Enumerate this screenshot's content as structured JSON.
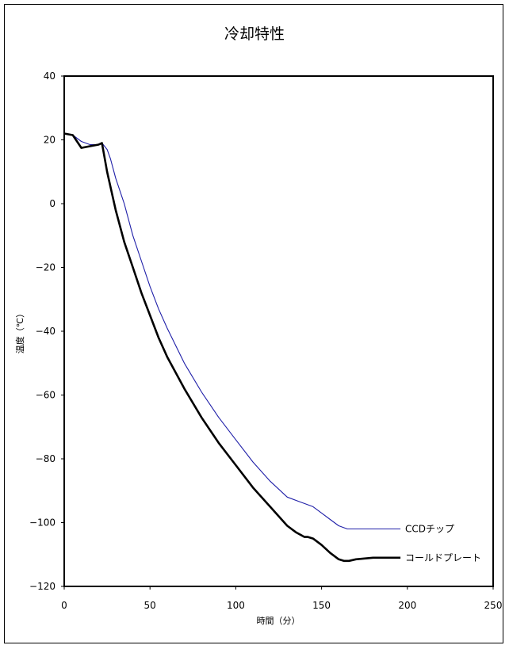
{
  "chart_data": {
    "type": "line",
    "title": "冷却特性",
    "xlabel": "時間（分）",
    "ylabel": "温度（℃）",
    "xlim": [
      0,
      250
    ],
    "ylim": [
      -120,
      40
    ],
    "xticks": [
      0,
      50,
      100,
      150,
      200,
      250
    ],
    "yticks": [
      40,
      20,
      0,
      -20,
      -40,
      -60,
      -80,
      -100,
      -120
    ],
    "grid": false,
    "legend": "series labels at line ends",
    "series": [
      {
        "name": "CCDチップ",
        "color": "#1f1fa8",
        "line_style": "thin",
        "x": [
          0,
          5,
          10,
          15,
          20,
          22,
          25,
          27,
          30,
          35,
          40,
          45,
          50,
          55,
          60,
          70,
          80,
          90,
          100,
          110,
          120,
          130,
          140,
          145,
          150,
          155,
          160,
          165,
          170,
          180,
          190,
          196
        ],
        "y": [
          22,
          21.5,
          19.5,
          18.5,
          18.5,
          19,
          17,
          14,
          8,
          0,
          -10,
          -18,
          -26,
          -33,
          -39,
          -50,
          -59,
          -67,
          -74,
          -81,
          -87,
          -92,
          -94,
          -95,
          -97,
          -99,
          -101,
          -102,
          -102,
          -102,
          -102,
          -102
        ]
      },
      {
        "name": "コールドプレート",
        "color": "#000000",
        "line_style": "thick",
        "x": [
          0,
          5,
          10,
          15,
          20,
          22,
          25,
          30,
          35,
          40,
          45,
          50,
          55,
          60,
          70,
          80,
          90,
          100,
          110,
          120,
          130,
          135,
          140,
          142,
          145,
          150,
          155,
          160,
          163,
          166,
          170,
          180,
          190,
          196
        ],
        "y": [
          22,
          21.5,
          17.5,
          18,
          18.5,
          19,
          10,
          -2,
          -12,
          -20,
          -28,
          -35,
          -42,
          -48,
          -58,
          -67,
          -75,
          -82,
          -89,
          -95,
          -101,
          -103,
          -104.5,
          -104.5,
          -105,
          -107,
          -109.5,
          -111.5,
          -112,
          -112,
          -111.5,
          -111,
          -111,
          -111
        ]
      }
    ]
  }
}
